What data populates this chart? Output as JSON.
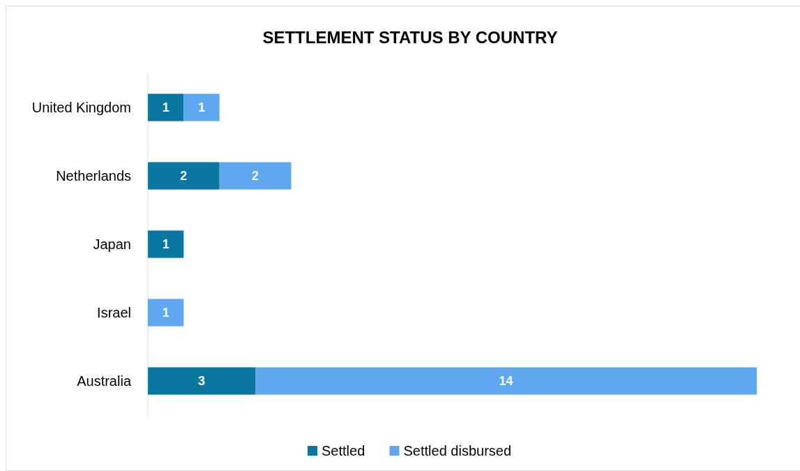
{
  "chart_data": {
    "type": "bar",
    "orientation": "horizontal",
    "stacked": true,
    "title": "SETTLEMENT STATUS BY COUNTRY",
    "categories": [
      "United Kingdom",
      "Netherlands",
      "Japan",
      "Israel",
      "Australia"
    ],
    "series": [
      {
        "name": "Settled",
        "color": "#0a77a0",
        "values": [
          1,
          2,
          1,
          null,
          3
        ]
      },
      {
        "name": "Settled disbursed",
        "color": "#5fa7ef",
        "values": [
          1,
          2,
          null,
          1,
          14
        ]
      }
    ],
    "data_labels": true,
    "legend": "bottom"
  }
}
